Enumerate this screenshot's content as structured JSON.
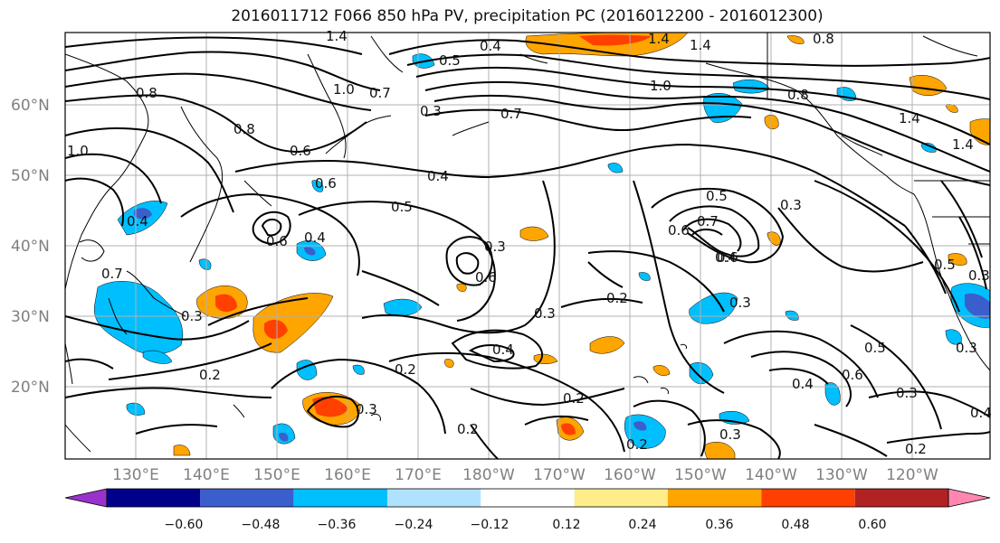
{
  "title": "2016011712 F066 850 hPa PV, precipitation PC (2016012200 - 2016012300)",
  "map": {
    "lat_labels": [
      "60°N",
      "50°N",
      "40°N",
      "30°N",
      "20°N"
    ],
    "lon_labels": [
      "130°E",
      "140°E",
      "150°E",
      "160°E",
      "170°E",
      "180°W",
      "170°W",
      "160°W",
      "150°W",
      "140°W",
      "130°W",
      "120°W"
    ],
    "contour_labels": [
      "1.4",
      "1.4",
      "1.4",
      "0.8",
      "1.0",
      "0.8",
      "0.8",
      "1.0",
      "0.7",
      "0.6",
      "0.5",
      "0.4",
      "0.3",
      "0.7",
      "0.8",
      "1.4",
      "1.4",
      "1.0",
      "0.6",
      "0.4",
      "0.6",
      "0.5",
      "0.6",
      "0.4",
      "0.3",
      "0.6",
      "0.5",
      "0.7",
      "0.6",
      "0.3",
      "0.4",
      "0.5",
      "0.3",
      "0.2",
      "0.3",
      "0.3",
      "0.3",
      "0.2",
      "0.4",
      "0.2",
      "0.3",
      "0.2",
      "0.2",
      "0.6",
      "0.5",
      "0.4",
      "0.3",
      "0.4",
      "0.3",
      "0.2",
      "0.2",
      "0.4",
      "0.7",
      "0.3"
    ]
  },
  "colorbar": {
    "ticks": [
      "−0.60",
      "−0.48",
      "−0.36",
      "−0.24",
      "−0.12",
      "0.12",
      "0.24",
      "0.36",
      "0.48",
      "0.60"
    ],
    "colors": [
      "#9932cc",
      "#00008b",
      "#3a5fcd",
      "#00bfff",
      "#b0e2ff",
      "#ffffff",
      "#ffec8b",
      "#ffa500",
      "#ff4000",
      "#b22222",
      "#ff87b0"
    ]
  }
}
